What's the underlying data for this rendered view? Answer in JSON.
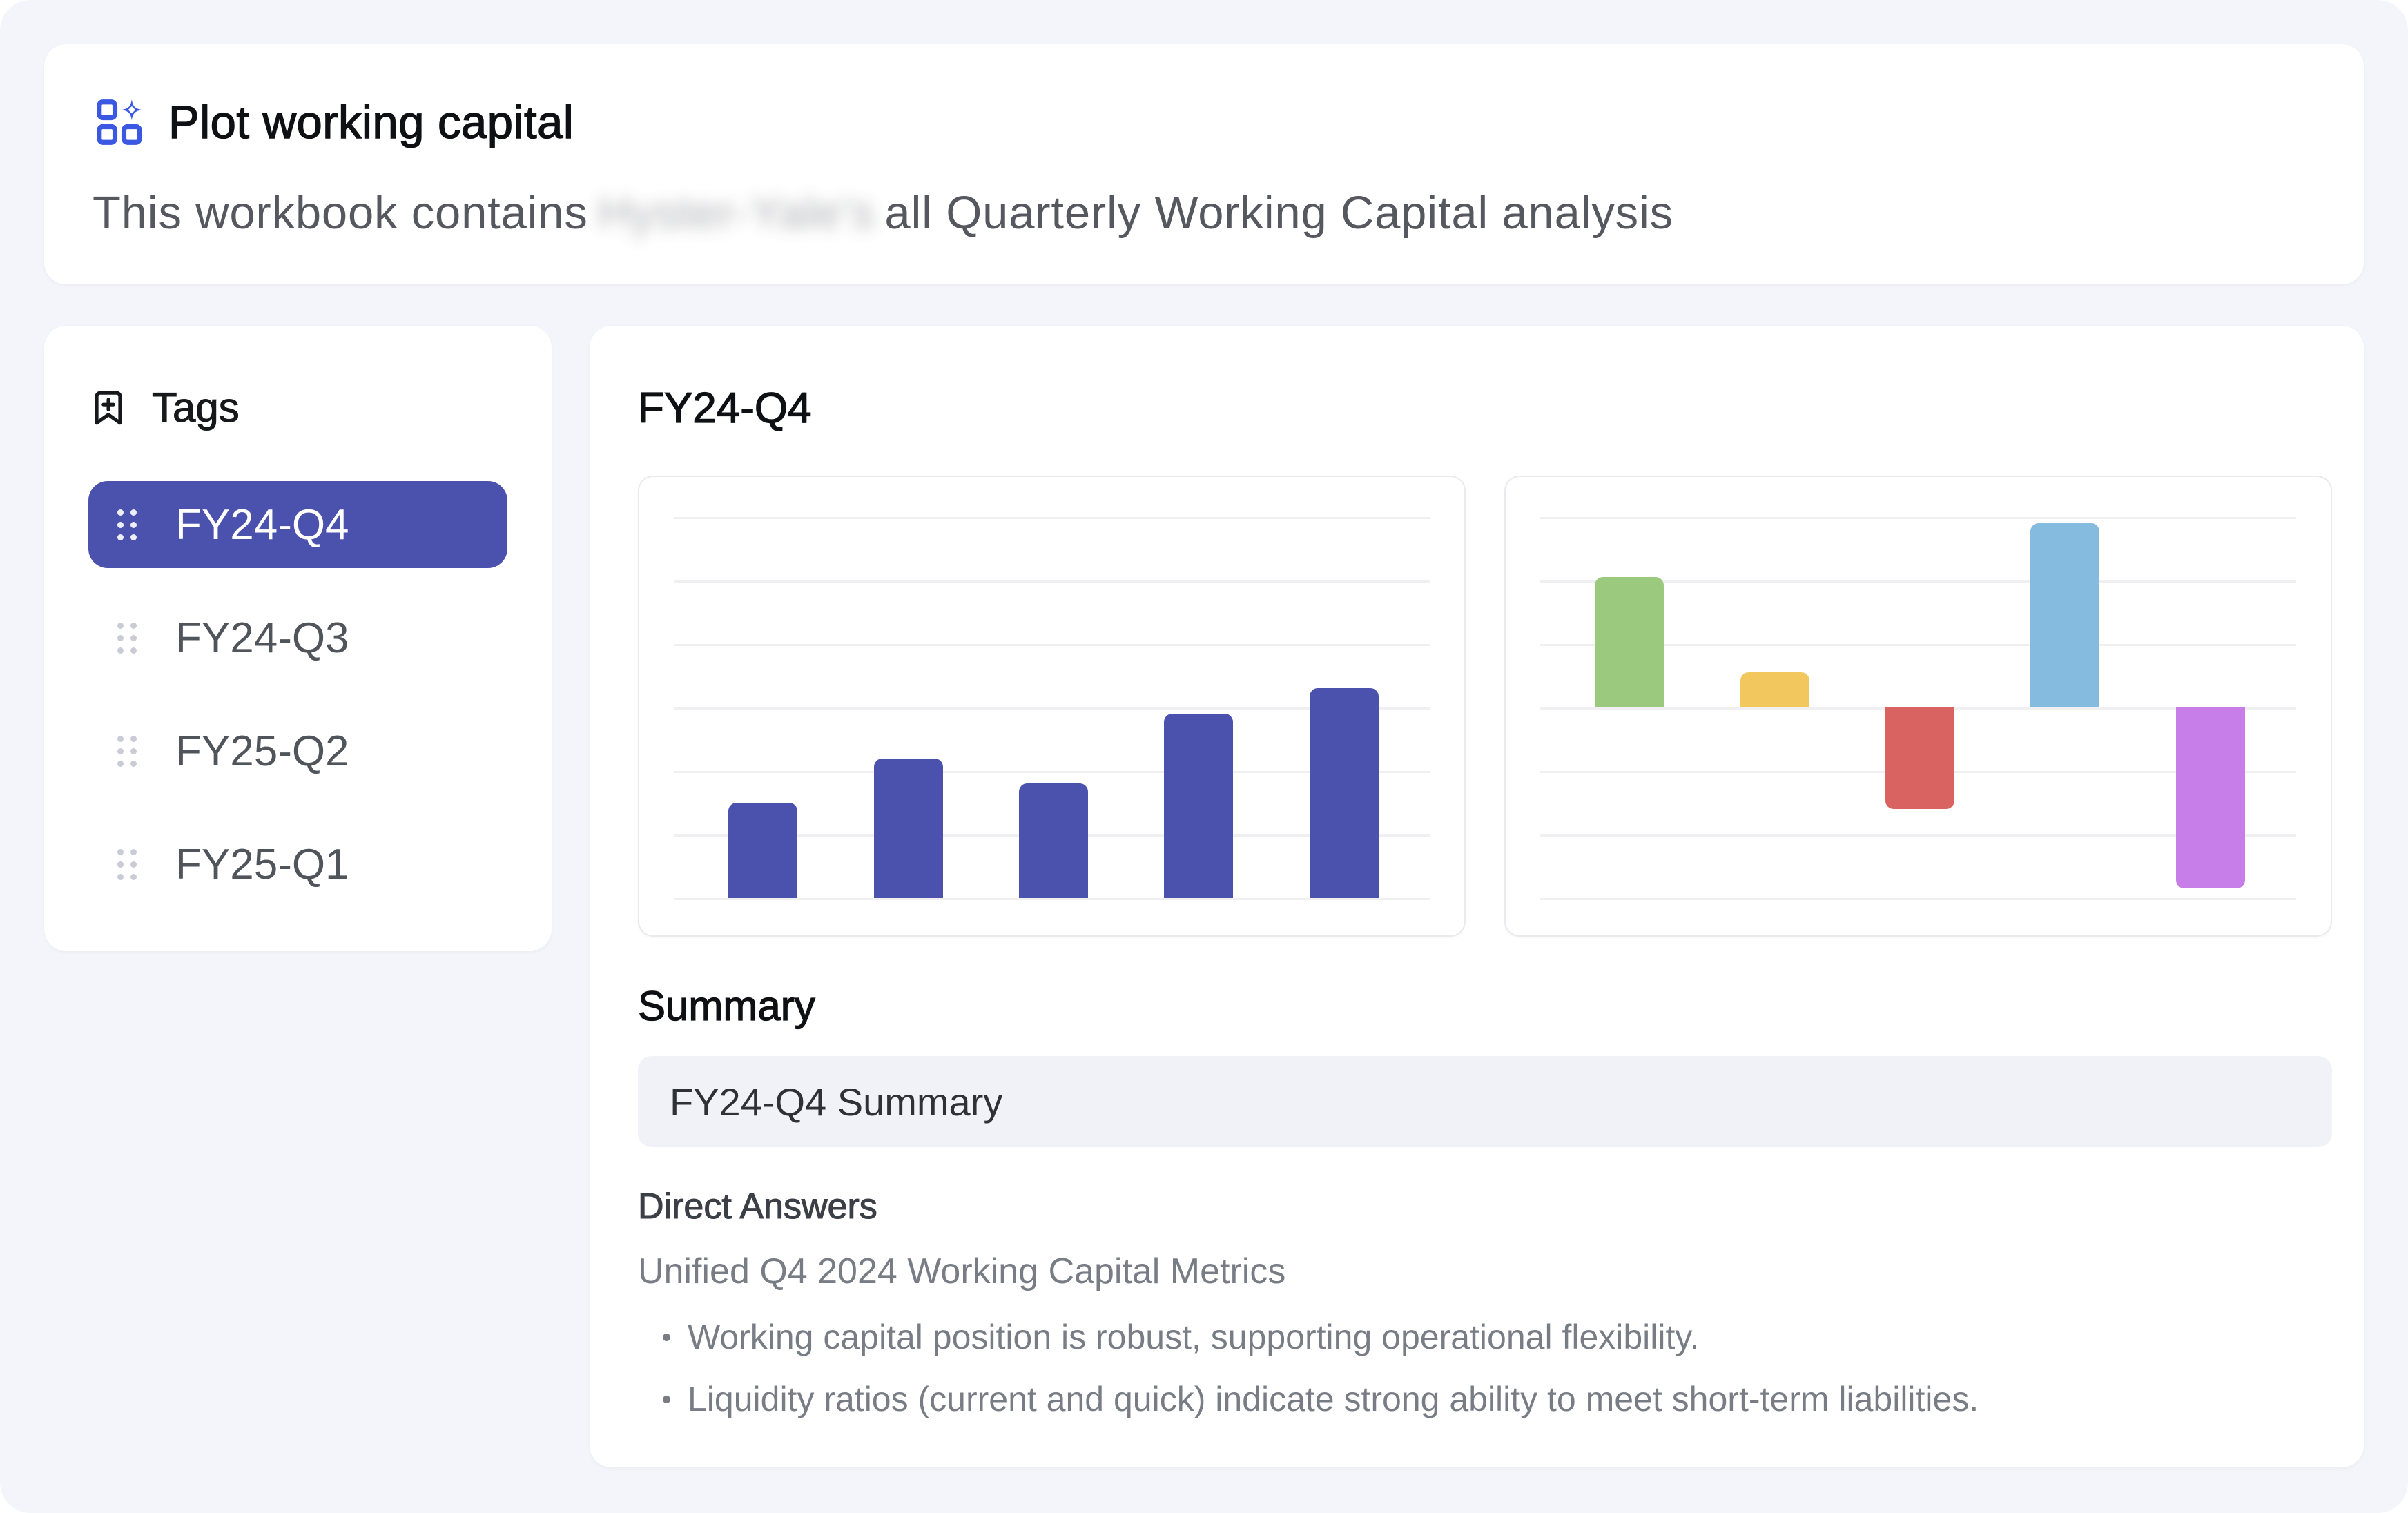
{
  "header": {
    "title": "Plot working capital",
    "description_prefix": "This workbook contains",
    "description_redacted": "Hyster-Yale's",
    "description_suffix": "all Quarterly Working Capital analysis"
  },
  "sidebar": {
    "title": "Tags",
    "items": [
      {
        "label": "FY24-Q4",
        "selected": true
      },
      {
        "label": "FY24-Q3",
        "selected": false
      },
      {
        "label": "FY25-Q2",
        "selected": false
      },
      {
        "label": "FY25-Q1",
        "selected": false
      }
    ]
  },
  "main": {
    "title": "FY24-Q4",
    "summary_heading": "Summary",
    "summary_box_text": "FY24-Q4 Summary",
    "direct_answers_heading": "Direct Answers",
    "metrics_line": "Unified Q4 2024 Working Capital Metrics",
    "bullets": [
      "Working capital position is robust, supporting operational flexibility.",
      "Liquidity ratios (current and quick) indicate strong ability to meet short-term liabilities."
    ]
  },
  "chart_data": [
    {
      "type": "bar",
      "values": [
        1.5,
        2.2,
        1.8,
        2.9,
        3.3
      ],
      "ylim": [
        0,
        6
      ],
      "bar_colors": [
        "#4A52AE",
        "#4A52AE",
        "#4A52AE",
        "#4A52AE",
        "#4A52AE"
      ],
      "grid": true,
      "legend": false
    },
    {
      "type": "bar",
      "values": [
        2.05,
        0.55,
        -1.6,
        2.9,
        -2.85
      ],
      "ylim": [
        -3,
        3
      ],
      "bar_colors": [
        "#9BC97D",
        "#F2C75E",
        "#D96360",
        "#85BBDE",
        "#C77EE8"
      ],
      "grid": true,
      "legend": false
    }
  ],
  "colors": {
    "page_bg": "#F4F5FA",
    "accent_indigo": "#4A52AE",
    "icon_blue": "#3B58E3",
    "summary_box_bg": "#F1F2F8"
  }
}
